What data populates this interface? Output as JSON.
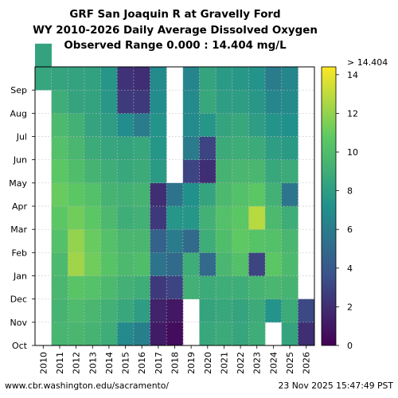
{
  "chart_data": {
    "type": "heatmap",
    "title_lines": [
      "GRF San Joaquin R at Gravelly Ford",
      "WY 2010-2026 Daily Average Dissolved Oxygen",
      "Observed Range 0.000 : 14.404 mg/L"
    ],
    "x_categories": [
      "2010",
      "2011",
      "2012",
      "2013",
      "2014",
      "2015",
      "2016",
      "2017",
      "2018",
      "2019",
      "2020",
      "2021",
      "2022",
      "2023",
      "2024",
      "2025",
      "2026"
    ],
    "y_months": [
      "Oct",
      "Nov",
      "Dec",
      "Jan",
      "Feb",
      "Mar",
      "Apr",
      "May",
      "Jun",
      "Jul",
      "Aug",
      "Sep"
    ],
    "colorbar": {
      "min": 0,
      "max": 14.404,
      "ticks": [
        0,
        2,
        4,
        6,
        8,
        10,
        12,
        14
      ],
      "top_label": "> 14.404",
      "colormap": [
        "#440154",
        "#3b528b",
        "#21918c",
        "#5ec962",
        "#fde725"
      ]
    },
    "grid": true,
    "monthly_values": [
      [
        null,
        null,
        null,
        null,
        null,
        null,
        null,
        null,
        null,
        null,
        null,
        8.5,
        8.3
      ],
      [
        9.5,
        9.4,
        9.6,
        9.8,
        10.2,
        10.6,
        11.0,
        10.6,
        10.2,
        9.8,
        9.0,
        8.4
      ],
      [
        9.6,
        9.9,
        10.5,
        12.3,
        12.0,
        11.2,
        10.6,
        10.0,
        9.6,
        9.2,
        8.4,
        8.3
      ],
      [
        9.4,
        9.6,
        10.3,
        11.2,
        11.0,
        10.6,
        10.2,
        9.4,
        8.8,
        8.4,
        8.3,
        8.2
      ],
      [
        9.0,
        9.2,
        9.8,
        10.4,
        10.2,
        9.8,
        9.4,
        9.0,
        8.5,
        8.0,
        7.6,
        7.5
      ],
      [
        6.8,
        8.6,
        9.2,
        9.8,
        9.6,
        9.0,
        9.2,
        8.6,
        8.4,
        7.0,
        2.6,
        2.2
      ],
      [
        6.2,
        8.0,
        9.0,
        10.0,
        9.6,
        9.2,
        9.4,
        8.8,
        8.6,
        6.0,
        2.5,
        2.0
      ],
      [
        1.2,
        1.5,
        2.5,
        5.5,
        4.5,
        2.5,
        2.0,
        7.8,
        7.5,
        7.4,
        7.0,
        6.8
      ],
      [
        0.5,
        1.0,
        3.0,
        5.0,
        6.0,
        7.5,
        5.5,
        null,
        null,
        null,
        null,
        null
      ],
      [
        null,
        null,
        9.2,
        9.0,
        5.0,
        7.5,
        7.2,
        3.0,
        6.0,
        6.8,
        6.8,
        6.5
      ],
      [
        8.6,
        8.4,
        8.8,
        5.0,
        9.0,
        9.2,
        8.4,
        2.0,
        3.0,
        7.5,
        8.6,
        8.4
      ],
      [
        8.8,
        8.6,
        9.0,
        9.6,
        10.0,
        10.2,
        9.8,
        9.4,
        8.8,
        8.4,
        8.0,
        7.8
      ],
      [
        8.5,
        8.4,
        9.0,
        10.2,
        10.8,
        10.6,
        10.2,
        9.6,
        9.0,
        8.6,
        8.0,
        7.6
      ],
      [
        9.0,
        8.8,
        9.4,
        3.0,
        10.4,
        12.8,
        10.6,
        9.6,
        8.8,
        8.0,
        7.6,
        7.4
      ],
      [
        null,
        7.4,
        9.6,
        10.6,
        10.2,
        9.8,
        9.2,
        8.6,
        8.0,
        7.4,
        6.6,
        6.0
      ],
      [
        8.4,
        8.8,
        9.4,
        9.8,
        9.6,
        9.0,
        5.6,
        8.8,
        7.8,
        7.2,
        6.8,
        6.6
      ],
      [
        2.0,
        3.2,
        null,
        null,
        null,
        null,
        null,
        null,
        null,
        null,
        null,
        null
      ]
    ]
  },
  "footer": {
    "left": "www.cbr.washington.edu/sacramento/",
    "right": "23 Nov 2025 15:47:49 PST"
  }
}
